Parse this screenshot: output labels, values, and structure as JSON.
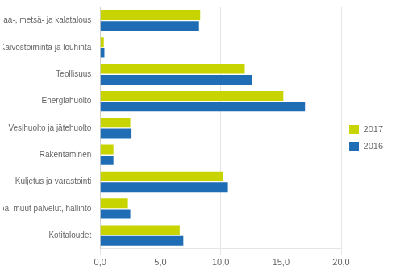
{
  "chart_data": {
    "type": "bar",
    "orientation": "horizontal",
    "categories": [
      "Maa-, metsä- ja kalatalous",
      "Kaivostoiminta ja louhinta",
      "Teollisuus",
      "Energiahuolto",
      "Vesihuolto ja jätehuolto",
      "Rakentaminen",
      "Kuljetus ja varastointi",
      "Kauppa, muut palvelut, hallinto",
      "Kotitaloudet"
    ],
    "series": [
      {
        "name": "2017",
        "color": "#c8d400",
        "values": [
          8.3,
          0.3,
          12.0,
          15.2,
          2.5,
          1.1,
          10.2,
          2.3,
          6.6
        ]
      },
      {
        "name": "2016",
        "color": "#1f6eb5",
        "values": [
          8.2,
          0.35,
          12.6,
          17.0,
          2.6,
          1.1,
          10.6,
          2.5,
          6.9
        ]
      }
    ],
    "xlim": [
      0,
      20
    ],
    "xticks": [
      {
        "value": 0.0,
        "label": "0,0"
      },
      {
        "value": 5.0,
        "label": "5,0"
      },
      {
        "value": 10.0,
        "label": "10,0"
      },
      {
        "value": 15.0,
        "label": "15,0"
      },
      {
        "value": 20.0,
        "label": "20,0"
      }
    ],
    "grid": true,
    "legend": "right"
  }
}
